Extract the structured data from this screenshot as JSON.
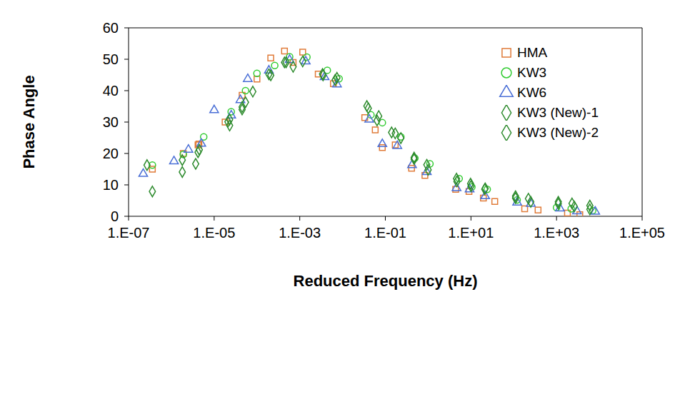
{
  "chart_data": {
    "type": "scatter",
    "x_label": "Reduced Frequency (Hz)",
    "y_label": "Phase Angle",
    "log": "x",
    "grid": false,
    "legend": "upper right",
    "xlim": [
      1e-07,
      100000.0
    ],
    "xticks": [
      {
        "value": 1e-07,
        "label": "1.E-07"
      },
      {
        "value": 1e-05,
        "label": "1.E-05"
      },
      {
        "value": 0.001,
        "label": "1.E-03"
      },
      {
        "value": 0.1,
        "label": "1.E-01"
      },
      {
        "value": 10,
        "label": "1.E+01"
      },
      {
        "value": 1000,
        "label": "1.E+03"
      },
      {
        "value": 100000,
        "label": "1.E+05"
      }
    ],
    "ylim": [
      0,
      60
    ],
    "yticks": [
      0,
      10,
      20,
      30,
      40,
      50,
      60
    ],
    "series": [
      {
        "name": "HMA",
        "color": "#e07b39",
        "marker": "square",
        "x": [
          3.6e-07,
          1.9e-06,
          4.2e-06,
          4.4e-06,
          1.8e-05,
          4.5e-05,
          0.0001,
          0.00021,
          0.00044,
          0.0007,
          0.00117,
          0.0027,
          0.0061,
          0.033,
          0.058,
          0.085,
          0.17,
          0.41,
          0.84,
          4.4,
          9,
          19.5,
          36,
          180,
          370,
          1800,
          3500
        ],
        "values": [
          15,
          20,
          22.7,
          23,
          30,
          38.5,
          43.7,
          50.4,
          52.6,
          49,
          52.3,
          45.3,
          42.2,
          31.4,
          27.5,
          21.9,
          22.7,
          15.3,
          13,
          8.6,
          7.9,
          5.8,
          4.7,
          2.4,
          2,
          1,
          0.5
        ]
      },
      {
        "name": "KW3",
        "color": "#33cc33",
        "marker": "circle",
        "x": [
          3.6e-07,
          1.9e-06,
          5.7e-06,
          2.5e-05,
          5.4e-05,
          0.0001,
          0.00026,
          0.00058,
          0.00147,
          0.0044,
          0.0083,
          0.046,
          0.085,
          0.23,
          0.49,
          1.1,
          5.3,
          10.5,
          24,
          120,
          1000,
          2200,
          7000
        ],
        "values": [
          16.3,
          19.7,
          25.3,
          33.3,
          40,
          45.5,
          48,
          50.8,
          50.7,
          46.5,
          43.8,
          32.3,
          29.8,
          25.3,
          18.5,
          16.7,
          12,
          9.3,
          8.6,
          5.2,
          2.8,
          2.4,
          1.8
        ]
      },
      {
        "name": "KW6",
        "color": "#4a6fd6",
        "marker": "triangle",
        "x": [
          2.2e-07,
          1.15e-06,
          2.5e-06,
          5e-06,
          1e-05,
          2.5e-05,
          4.1e-05,
          6.1e-05,
          0.00019,
          0.00058,
          0.00138,
          0.0038,
          0.0074,
          0.042,
          0.085,
          0.19,
          0.42,
          0.93,
          4.6,
          9.3,
          21.5,
          120,
          250,
          1200,
          3000,
          8000
        ],
        "values": [
          13.5,
          17.5,
          21.2,
          23.1,
          33.8,
          32.1,
          37,
          43.7,
          46.4,
          49.8,
          49.3,
          44.3,
          42,
          30.8,
          23,
          22.4,
          16.3,
          14.1,
          9,
          8.6,
          6.4,
          4.4,
          4,
          2.5,
          1.6,
          1.5
        ]
      },
      {
        "name": "KW3 (New)-1",
        "color": "#2e8b2e",
        "marker": "diamond",
        "x": [
          2.7e-07,
          1.8e-06,
          4.2e-06,
          2.3e-05,
          4.5e-05,
          8e-05,
          0.00021,
          0.00048,
          0.00117,
          0.0035,
          0.0074,
          0.037,
          0.07,
          0.14,
          0.23,
          0.47,
          0.93,
          4.6,
          9.8,
          21,
          110,
          220,
          1100,
          2300,
          6000
        ],
        "values": [
          16.3,
          17.9,
          20.4,
          30.8,
          34,
          39.7,
          44.9,
          49,
          49.3,
          44.9,
          44.1,
          35.1,
          31.9,
          26.7,
          24.9,
          18.7,
          16.4,
          12,
          10.4,
          8.6,
          6.4,
          5.6,
          4.6,
          4.1,
          3.4
        ]
      },
      {
        "name": "KW3 (New)-2",
        "color": "#2e8b2e",
        "marker": "diamond",
        "x": [
          3.6e-07,
          1.8e-06,
          3.7e-06,
          4.5e-06,
          2.1e-05,
          2.3e-05,
          4.5e-05,
          5.4e-05,
          0.00019,
          0.00044,
          0.0007,
          0.0034,
          0.0067,
          0.04,
          0.064,
          0.17,
          0.47,
          1,
          4.7,
          10,
          21.5,
          110,
          250,
          1100,
          2600,
          6000
        ],
        "values": [
          7.9,
          14.1,
          16.7,
          21.2,
          30.1,
          28.9,
          34.8,
          36.3,
          45.2,
          49,
          47.6,
          45.3,
          43.4,
          34.4,
          30.5,
          26.4,
          18.2,
          14.8,
          11.1,
          9.6,
          8.9,
          5.8,
          4.6,
          4,
          3.1,
          2.2
        ]
      }
    ]
  }
}
